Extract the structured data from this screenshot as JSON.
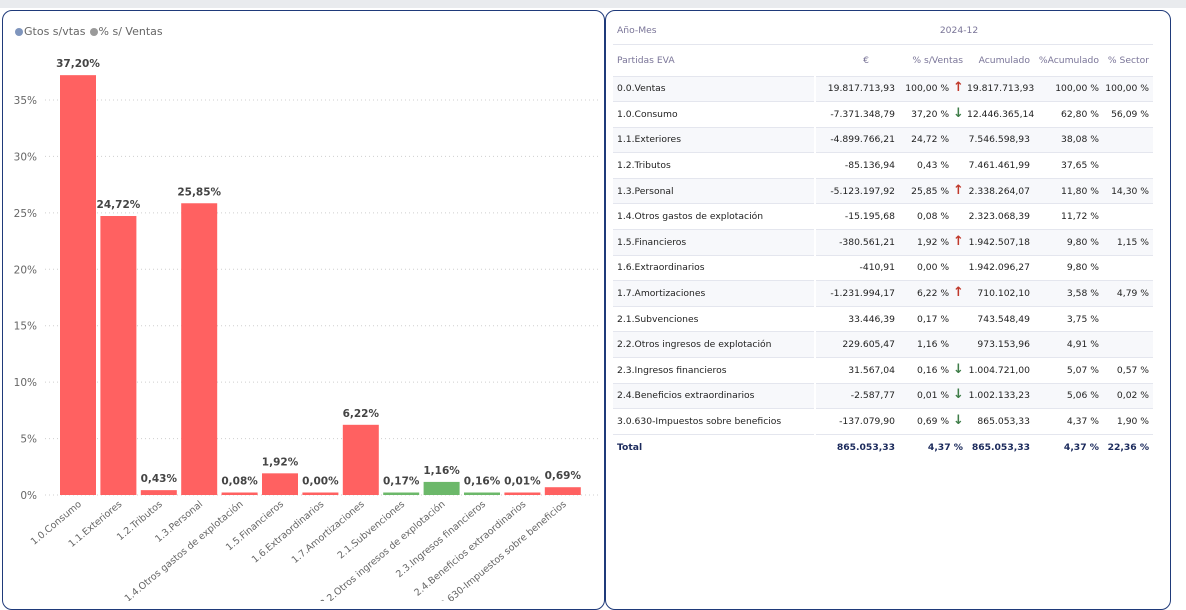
{
  "legend": [
    {
      "label": "Gtos s/vtas",
      "color": "#7f95bd"
    },
    {
      "label": "% s/ Ventas",
      "color": "#9a9a9a"
    }
  ],
  "chart_data": {
    "type": "bar",
    "categories": [
      "1.0.Consumo",
      "1.1.Exteriores",
      "1.2.Tributos",
      "1.3.Personal",
      "1.4.Otros gastos de explotación",
      "1.5.Financieros",
      "1.6.Extraordinarios",
      "1.7.Amortizaciones",
      "2.1.Subvenciones",
      "2.2.Otros ingresos de explotación",
      "2.3.Ingresos financieros",
      "2.4.Beneficios extraordinarios",
      "3.0.630-Impuestos sobre beneficios"
    ],
    "values": [
      37.2,
      24.72,
      0.43,
      25.85,
      0.08,
      1.92,
      0.0,
      6.22,
      0.17,
      1.16,
      0.16,
      0.01,
      0.69
    ],
    "data_labels": [
      "37,20%",
      "24,72%",
      "0,43%",
      "25,85%",
      "0,08%",
      "1,92%",
      "0,00%",
      "6,22%",
      "0,17%",
      "1,16%",
      "0,16%",
      "0,01%",
      "0,69%"
    ],
    "bar_colors": [
      "#ff6161",
      "#ff6161",
      "#ff6161",
      "#ff6161",
      "#ff6161",
      "#ff6161",
      "#ff6161",
      "#ff6161",
      "#6cb86a",
      "#6cb86a",
      "#6cb86a",
      "#ff6161",
      "#ff6161"
    ],
    "yticks": [
      0,
      5,
      10,
      15,
      20,
      25,
      30,
      35
    ],
    "ytick_labels": [
      "0%",
      "5%",
      "10%",
      "15%",
      "20%",
      "25%",
      "30%",
      "35%"
    ],
    "ylim": [
      0,
      40
    ],
    "grid": true,
    "legend_position": "top-left"
  },
  "table": {
    "period_label": "Año-Mes",
    "period": "2024-12",
    "headers": [
      "Partidas EVA",
      "€",
      "% s/Ventas",
      "Acumulado",
      "%Acumulado",
      "% Sector"
    ],
    "rows": [
      {
        "name": "0.0.Ventas",
        "eur": "19.817.713,93",
        "sign": "pos",
        "pct": "100,00 %",
        "arrow": "up",
        "acum": "19.817.713,93",
        "pacum": "100,00 %",
        "sector": "100,00 %"
      },
      {
        "name": "1.0.Consumo",
        "eur": "-7.371.348,79",
        "sign": "neg",
        "pct": "37,20 %",
        "arrow": "down",
        "acum": "12.446.365,14",
        "pacum": "62,80 %",
        "sector": "56,09 %"
      },
      {
        "name": "1.1.Exteriores",
        "eur": "-4.899.766,21",
        "sign": "neg",
        "pct": "24,72 %",
        "arrow": "",
        "acum": "7.546.598,93",
        "pacum": "38,08 %",
        "sector": ""
      },
      {
        "name": "1.2.Tributos",
        "eur": "-85.136,94",
        "sign": "neg",
        "pct": "0,43 %",
        "arrow": "",
        "acum": "7.461.461,99",
        "pacum": "37,65 %",
        "sector": ""
      },
      {
        "name": "1.3.Personal",
        "eur": "-5.123.197,92",
        "sign": "neg",
        "pct": "25,85 %",
        "arrow": "up",
        "acum": "2.338.264,07",
        "pacum": "11,80 %",
        "sector": "14,30 %"
      },
      {
        "name": "1.4.Otros gastos de explotación",
        "eur": "-15.195,68",
        "sign": "neg",
        "pct": "0,08 %",
        "arrow": "",
        "acum": "2.323.068,39",
        "pacum": "11,72 %",
        "sector": ""
      },
      {
        "name": "1.5.Financieros",
        "eur": "-380.561,21",
        "sign": "neg",
        "pct": "1,92 %",
        "arrow": "up",
        "acum": "1.942.507,18",
        "pacum": "9,80 %",
        "sector": "1,15 %"
      },
      {
        "name": "1.6.Extraordinarios",
        "eur": "-410,91",
        "sign": "neg",
        "pct": "0,00 %",
        "arrow": "",
        "acum": "1.942.096,27",
        "pacum": "9,80 %",
        "sector": ""
      },
      {
        "name": "1.7.Amortizaciones",
        "eur": "-1.231.994,17",
        "sign": "neg",
        "pct": "6,22 %",
        "arrow": "up",
        "acum": "710.102,10",
        "pacum": "3,58 %",
        "sector": "4,79 %"
      },
      {
        "name": "2.1.Subvenciones",
        "eur": "33.446,39",
        "sign": "pos",
        "pct": "0,17 %",
        "arrow": "",
        "acum": "743.548,49",
        "pacum": "3,75 %",
        "sector": ""
      },
      {
        "name": "2.2.Otros ingresos de explotación",
        "eur": "229.605,47",
        "sign": "pos",
        "pct": "1,16 %",
        "arrow": "",
        "acum": "973.153,96",
        "pacum": "4,91 %",
        "sector": ""
      },
      {
        "name": "2.3.Ingresos financieros",
        "eur": "31.567,04",
        "sign": "pos",
        "pct": "0,16 %",
        "arrow": "down",
        "acum": "1.004.721,00",
        "pacum": "5,07 %",
        "sector": "0,57 %"
      },
      {
        "name": "2.4.Beneficios extraordinarios",
        "eur": "-2.587,77",
        "sign": "neg",
        "pct": "0,01 %",
        "arrow": "down",
        "acum": "1.002.133,23",
        "pacum": "5,06 %",
        "sector": "0,02 %"
      },
      {
        "name": "3.0.630-Impuestos sobre beneficios",
        "eur": "-137.079,90",
        "sign": "neg",
        "pct": "0,69 %",
        "arrow": "down",
        "acum": "865.053,33",
        "pacum": "4,37 %",
        "sector": "1,90 %"
      }
    ],
    "total": {
      "name": "Total",
      "eur": "865.053,33",
      "pct": "4,37 %",
      "acum": "865.053,33",
      "pacum": "4,37 %",
      "sector": "22,36 %"
    }
  }
}
